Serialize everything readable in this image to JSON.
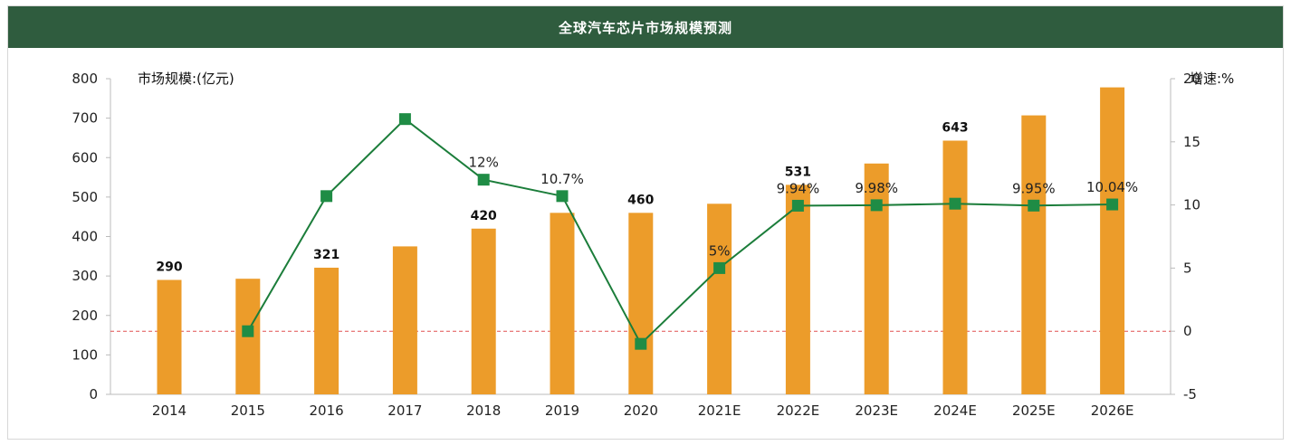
{
  "chart_data": {
    "type": "bar+line",
    "title": "全球汽车芯片市场规模预测",
    "categories": [
      "2014",
      "2015",
      "2016",
      "2017",
      "2018",
      "2019",
      "2020",
      "2021E",
      "2022E",
      "2023E",
      "2024E",
      "2025E",
      "2026E"
    ],
    "series": [
      {
        "name": "",
        "type": "bar",
        "axis": "left",
        "color": "#ec9c2a",
        "values": [
          290,
          293,
          321,
          375,
          420,
          460,
          460,
          483,
          531,
          585,
          643,
          707,
          778
        ],
        "labels": [
          "290",
          "",
          "321",
          "",
          "420",
          "",
          "460",
          "",
          "531",
          "",
          "643",
          "",
          ""
        ]
      },
      {
        "name": "",
        "type": "line",
        "axis": "right",
        "color": "#1b7d3a",
        "marker_color": "#1f8c45",
        "values": [
          null,
          0,
          10.7,
          16.8,
          12,
          10.7,
          -1,
          5,
          9.94,
          9.98,
          10.1,
          9.95,
          10.04
        ],
        "labels": [
          "",
          "",
          "",
          "",
          "12%",
          "10.7%",
          "",
          "5%",
          "9.94%",
          "9.98%",
          "",
          "9.95%",
          "10.04%"
        ]
      }
    ],
    "y_left": {
      "label": "市场规模:(亿元)",
      "ylim": [
        0,
        800
      ],
      "ticks": [
        "0",
        "100",
        "200",
        "300",
        "400",
        "500",
        "600",
        "700",
        "800"
      ]
    },
    "y_right": {
      "label": "增速:%",
      "ylim": [
        -5,
        20
      ],
      "ticks": [
        "-5",
        "0",
        "5",
        "10",
        "15",
        "20"
      ]
    },
    "zero_line": {
      "style": "dashed",
      "color": "#e05050"
    },
    "grid": false,
    "legend": "none"
  }
}
